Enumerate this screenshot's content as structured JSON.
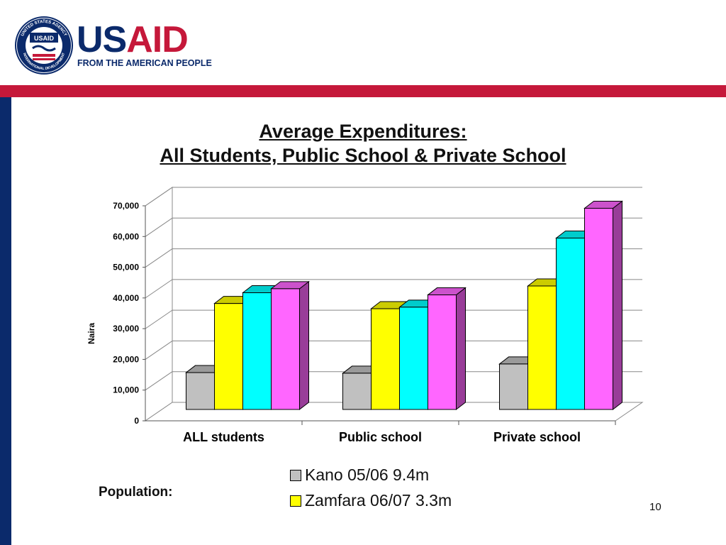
{
  "header": {
    "brand_us": "US",
    "brand_aid": "AID",
    "tagline": "FROM THE AMERICAN PEOPLE",
    "seal_text_top": "UNITED STATES AGENCY",
    "seal_text_bottom": "INTERNATIONAL DEVELOPMENT",
    "seal_center": "USAID"
  },
  "colors": {
    "brand_blue": "#0b2a6b",
    "brand_red": "#c5183a"
  },
  "chart_data": {
    "type": "bar",
    "title": "Average Expenditures:",
    "subtitle": "All Students, Public School & Private School",
    "xlabel": "",
    "ylabel": "Naira",
    "ylim": [
      0,
      70000
    ],
    "yticks": [
      "0",
      "10,000",
      "20,000",
      "30,000",
      "40,000",
      "50,000",
      "60,000",
      "70,000"
    ],
    "categories": [
      "ALL students",
      "Public school",
      "Private school"
    ],
    "series": [
      {
        "name": "Kano 05/06 9.4m",
        "color": "#c0c0c0",
        "values": [
          12000,
          11800,
          14800
        ]
      },
      {
        "name": "Zamfara 06/07 3.3m",
        "color": "#ffff00",
        "values": [
          34500,
          32800,
          40200
        ]
      },
      {
        "color": "#00ffff",
        "values": [
          38000,
          33300,
          55800
        ]
      },
      {
        "color": "#ff66ff",
        "values": [
          39300,
          37300,
          65500
        ]
      }
    ],
    "grid": true,
    "three_d": true
  },
  "footer": {
    "population_label": "Population:",
    "page_number": "10"
  }
}
